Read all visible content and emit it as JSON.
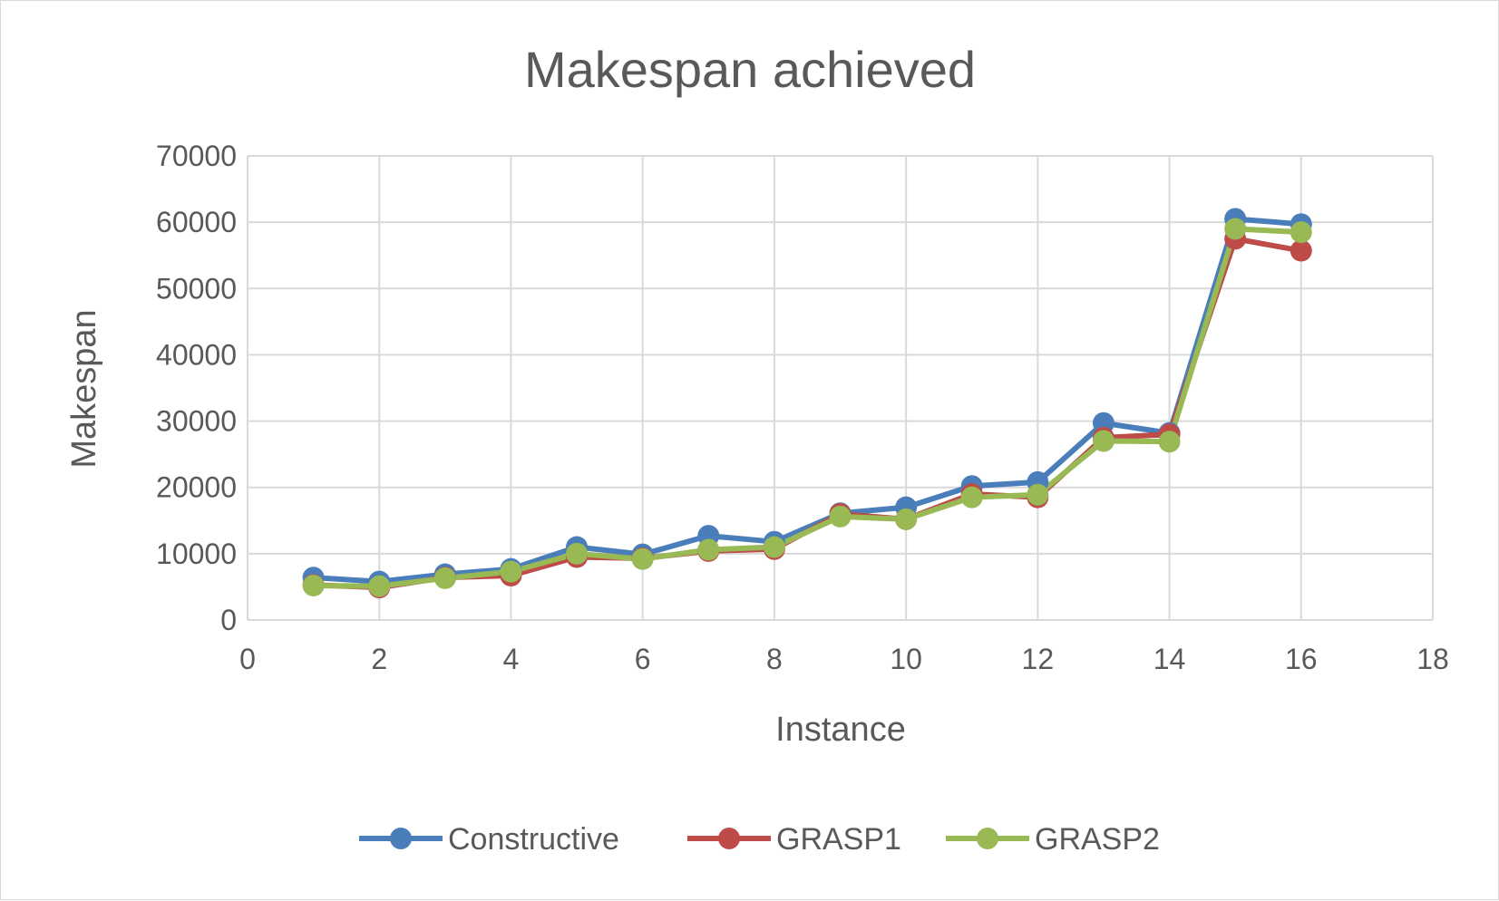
{
  "chart_data": {
    "type": "scatter",
    "title": "Makespan achieved",
    "xlabel": "Instance",
    "ylabel": "Makespan",
    "xlim": [
      0,
      18
    ],
    "ylim": [
      0,
      70000
    ],
    "x_ticks": [
      0,
      2,
      4,
      6,
      8,
      10,
      12,
      14,
      16,
      18
    ],
    "y_ticks": [
      0,
      10000,
      20000,
      30000,
      40000,
      50000,
      60000,
      70000
    ],
    "grid": true,
    "legend_position": "bottom",
    "x": [
      1,
      2,
      3,
      4,
      5,
      6,
      7,
      8,
      9,
      10,
      11,
      12,
      13,
      14,
      15,
      16
    ],
    "series": [
      {
        "name": "Constructive",
        "color": "#4a7ebb",
        "values": [
          6400,
          5800,
          6900,
          7700,
          11000,
          9900,
          12700,
          11800,
          16100,
          17000,
          20200,
          20800,
          29700,
          28200,
          60500,
          59700
        ]
      },
      {
        "name": "GRASP1",
        "color": "#be4b48",
        "values": [
          5300,
          4900,
          6400,
          6700,
          9500,
          9300,
          10400,
          10700,
          16000,
          15200,
          19000,
          18500,
          27500,
          28000,
          57500,
          55700
        ]
      },
      {
        "name": "GRASP2",
        "color": "#98b954",
        "values": [
          5200,
          5100,
          6300,
          7300,
          10000,
          9200,
          10600,
          11000,
          15600,
          15200,
          18500,
          18900,
          27000,
          26900,
          59000,
          58500
        ]
      }
    ]
  }
}
